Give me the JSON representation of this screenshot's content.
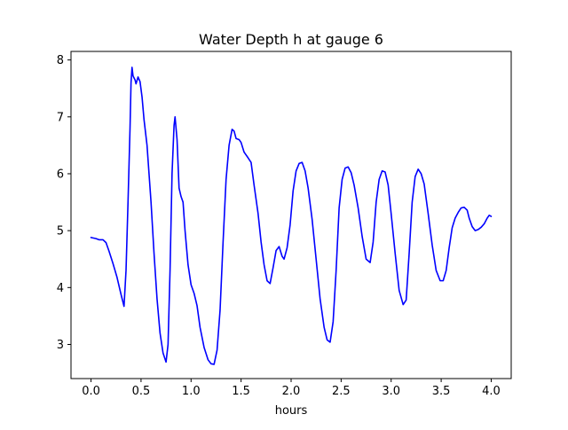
{
  "chart_data": {
    "type": "line",
    "title": "Water Depth h at gauge 6",
    "xlabel": "hours",
    "ylabel": "",
    "xlim": [
      -0.2,
      4.2
    ],
    "ylim": [
      2.4,
      8.15
    ],
    "xticks": [
      0.0,
      0.5,
      1.0,
      1.5,
      2.0,
      2.5,
      3.0,
      3.5,
      4.0
    ],
    "xtick_labels": [
      "0.0",
      "0.5",
      "1.0",
      "1.5",
      "2.0",
      "2.5",
      "3.0",
      "3.5",
      "4.0"
    ],
    "yticks": [
      3,
      4,
      5,
      6,
      7,
      8
    ],
    "ytick_labels": [
      "3",
      "4",
      "5",
      "6",
      "7",
      "8"
    ],
    "grid": false,
    "legend": "none",
    "series": [
      {
        "color": "#0000ff",
        "points": [
          [
            0.0,
            4.88
          ],
          [
            0.05,
            4.86
          ],
          [
            0.08,
            4.84
          ],
          [
            0.12,
            4.84
          ],
          [
            0.15,
            4.79
          ],
          [
            0.18,
            4.64
          ],
          [
            0.22,
            4.42
          ],
          [
            0.26,
            4.18
          ],
          [
            0.3,
            3.88
          ],
          [
            0.33,
            3.67
          ],
          [
            0.35,
            4.3
          ],
          [
            0.37,
            5.5
          ],
          [
            0.39,
            6.8
          ],
          [
            0.4,
            7.6
          ],
          [
            0.41,
            7.87
          ],
          [
            0.42,
            7.72
          ],
          [
            0.44,
            7.65
          ],
          [
            0.45,
            7.58
          ],
          [
            0.47,
            7.7
          ],
          [
            0.49,
            7.62
          ],
          [
            0.51,
            7.35
          ],
          [
            0.53,
            6.95
          ],
          [
            0.56,
            6.5
          ],
          [
            0.6,
            5.5
          ],
          [
            0.63,
            4.6
          ],
          [
            0.66,
            3.8
          ],
          [
            0.69,
            3.2
          ],
          [
            0.72,
            2.85
          ],
          [
            0.75,
            2.69
          ],
          [
            0.77,
            3.0
          ],
          [
            0.79,
            4.3
          ],
          [
            0.81,
            6.0
          ],
          [
            0.83,
            6.85
          ],
          [
            0.84,
            7.0
          ],
          [
            0.86,
            6.6
          ],
          [
            0.88,
            5.75
          ],
          [
            0.9,
            5.6
          ],
          [
            0.92,
            5.5
          ],
          [
            0.94,
            5.0
          ],
          [
            0.97,
            4.4
          ],
          [
            1.0,
            4.05
          ],
          [
            1.03,
            3.9
          ],
          [
            1.06,
            3.68
          ],
          [
            1.09,
            3.3
          ],
          [
            1.13,
            2.95
          ],
          [
            1.17,
            2.73
          ],
          [
            1.2,
            2.66
          ],
          [
            1.23,
            2.65
          ],
          [
            1.26,
            2.9
          ],
          [
            1.29,
            3.6
          ],
          [
            1.32,
            4.8
          ],
          [
            1.35,
            5.9
          ],
          [
            1.38,
            6.5
          ],
          [
            1.41,
            6.78
          ],
          [
            1.43,
            6.75
          ],
          [
            1.45,
            6.62
          ],
          [
            1.48,
            6.6
          ],
          [
            1.5,
            6.55
          ],
          [
            1.53,
            6.38
          ],
          [
            1.57,
            6.28
          ],
          [
            1.6,
            6.2
          ],
          [
            1.63,
            5.8
          ],
          [
            1.67,
            5.3
          ],
          [
            1.7,
            4.8
          ],
          [
            1.73,
            4.4
          ],
          [
            1.76,
            4.12
          ],
          [
            1.79,
            4.07
          ],
          [
            1.82,
            4.35
          ],
          [
            1.85,
            4.65
          ],
          [
            1.88,
            4.72
          ],
          [
            1.91,
            4.55
          ],
          [
            1.93,
            4.5
          ],
          [
            1.96,
            4.7
          ],
          [
            1.99,
            5.1
          ],
          [
            2.02,
            5.7
          ],
          [
            2.05,
            6.05
          ],
          [
            2.08,
            6.18
          ],
          [
            2.11,
            6.2
          ],
          [
            2.14,
            6.05
          ],
          [
            2.17,
            5.75
          ],
          [
            2.21,
            5.2
          ],
          [
            2.25,
            4.5
          ],
          [
            2.29,
            3.8
          ],
          [
            2.33,
            3.3
          ],
          [
            2.36,
            3.08
          ],
          [
            2.39,
            3.04
          ],
          [
            2.42,
            3.4
          ],
          [
            2.45,
            4.3
          ],
          [
            2.48,
            5.4
          ],
          [
            2.51,
            5.9
          ],
          [
            2.54,
            6.1
          ],
          [
            2.57,
            6.12
          ],
          [
            2.6,
            6.02
          ],
          [
            2.63,
            5.8
          ],
          [
            2.67,
            5.4
          ],
          [
            2.71,
            4.9
          ],
          [
            2.75,
            4.5
          ],
          [
            2.79,
            4.44
          ],
          [
            2.82,
            4.8
          ],
          [
            2.85,
            5.5
          ],
          [
            2.88,
            5.9
          ],
          [
            2.91,
            6.05
          ],
          [
            2.94,
            6.03
          ],
          [
            2.97,
            5.8
          ],
          [
            3.0,
            5.3
          ],
          [
            3.04,
            4.6
          ],
          [
            3.08,
            3.95
          ],
          [
            3.12,
            3.7
          ],
          [
            3.15,
            3.78
          ],
          [
            3.18,
            4.6
          ],
          [
            3.21,
            5.5
          ],
          [
            3.24,
            5.95
          ],
          [
            3.27,
            6.08
          ],
          [
            3.3,
            6.0
          ],
          [
            3.33,
            5.82
          ],
          [
            3.37,
            5.3
          ],
          [
            3.41,
            4.75
          ],
          [
            3.45,
            4.3
          ],
          [
            3.49,
            4.12
          ],
          [
            3.52,
            4.12
          ],
          [
            3.55,
            4.3
          ],
          [
            3.58,
            4.7
          ],
          [
            3.61,
            5.05
          ],
          [
            3.64,
            5.22
          ],
          [
            3.67,
            5.32
          ],
          [
            3.7,
            5.4
          ],
          [
            3.73,
            5.41
          ],
          [
            3.76,
            5.36
          ],
          [
            3.78,
            5.22
          ],
          [
            3.81,
            5.07
          ],
          [
            3.84,
            5.0
          ],
          [
            3.87,
            5.02
          ],
          [
            3.9,
            5.06
          ],
          [
            3.93,
            5.12
          ],
          [
            3.96,
            5.22
          ],
          [
            3.98,
            5.27
          ],
          [
            4.0,
            5.25
          ]
        ]
      }
    ]
  }
}
